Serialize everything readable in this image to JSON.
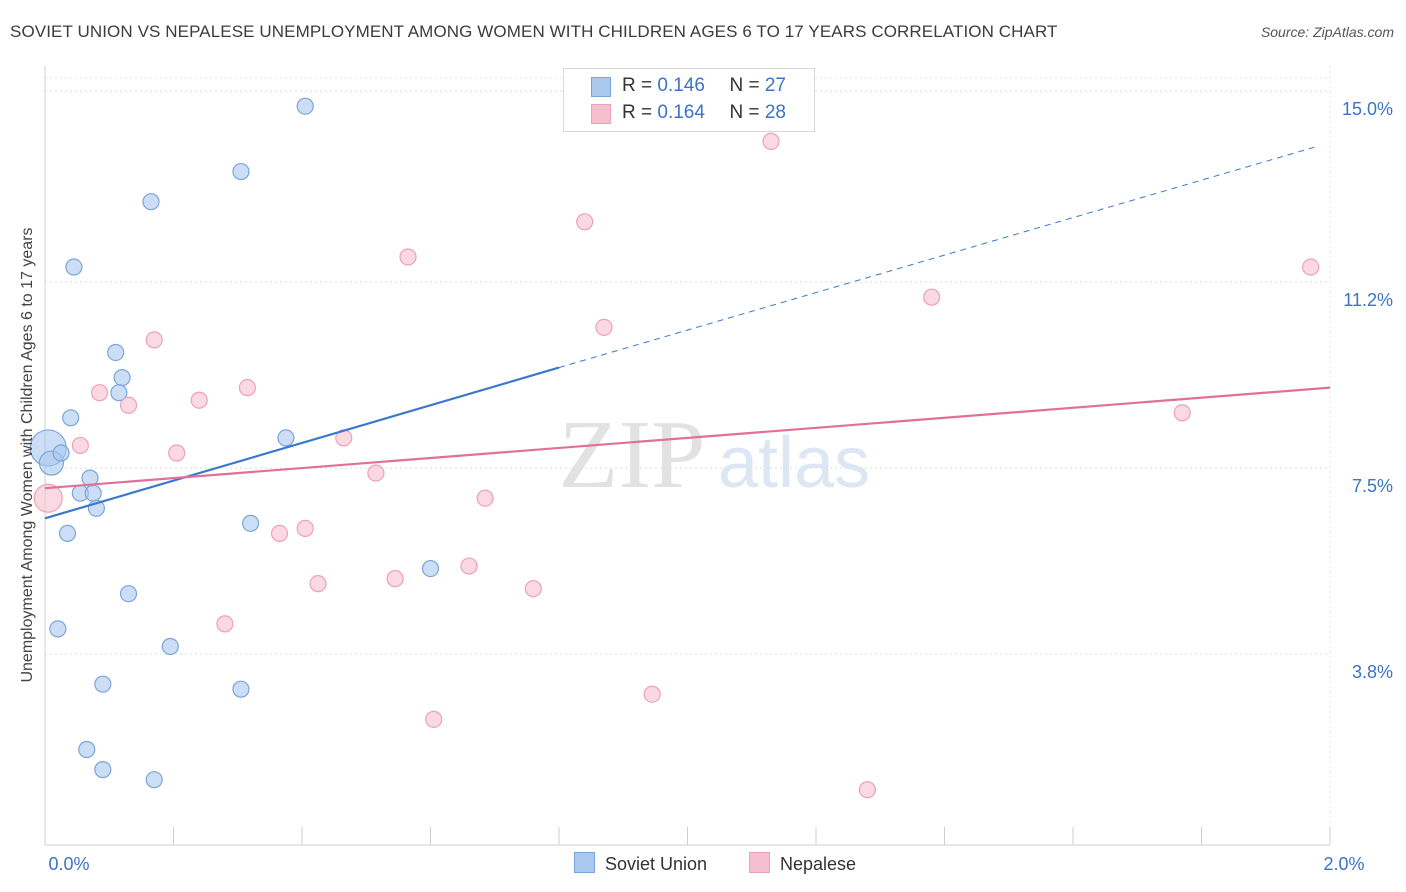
{
  "header": {
    "title": "SOVIET UNION VS NEPALESE UNEMPLOYMENT AMONG WOMEN WITH CHILDREN AGES 6 TO 17 YEARS CORRELATION CHART",
    "source": "Source: ZipAtlas.com"
  },
  "legend": {
    "soviet": {
      "r_label": "R = ",
      "r_value": "0.146",
      "n_label": "N = ",
      "n_value": "27"
    },
    "nepalese": {
      "r_label": "R = ",
      "r_value": "0.164",
      "n_label": "N = ",
      "n_value": "28"
    }
  },
  "bottom_legend": {
    "soviet": "Soviet Union",
    "nepalese": "Nepalese"
  },
  "watermark": {
    "zip": "ZIP",
    "atlas": "atlas"
  },
  "colors": {
    "soviet_fill": "#aac8ee",
    "soviet_stroke": "#7aa5dc",
    "soviet_line": "#3a78cf",
    "nepalese_fill": "#f6bfd0",
    "nepalese_stroke": "#eea0b8",
    "nepalese_line": "#e07098",
    "axis_label": "#3b73c7"
  },
  "chart_data": {
    "type": "scatter",
    "title": "SOVIET UNION VS NEPALESE UNEMPLOYMENT AMONG WOMEN WITH CHILDREN AGES 6 TO 17 YEARS CORRELATION CHART",
    "xlabel": "",
    "ylabel": "Unemployment Among Women with Children Ages 6 to 17 years",
    "xlim": [
      0.0,
      2.0
    ],
    "ylim": [
      0.0,
      15.5
    ],
    "x_tick_labels": [
      {
        "value": 0.0,
        "label": "0.0%"
      },
      {
        "value": 2.0,
        "label": "2.0%"
      }
    ],
    "y_tick_labels": [
      {
        "value": 3.8,
        "label": "3.8%"
      },
      {
        "value": 7.5,
        "label": "7.5%"
      },
      {
        "value": 11.2,
        "label": "11.2%"
      },
      {
        "value": 15.0,
        "label": "15.0%"
      }
    ],
    "series": [
      {
        "name": "Soviet Union",
        "R": 0.146,
        "N": 27,
        "points": [
          {
            "x": 0.005,
            "y": 7.9,
            "r": 18
          },
          {
            "x": 0.01,
            "y": 7.6,
            "r": 12
          },
          {
            "x": 0.025,
            "y": 7.8
          },
          {
            "x": 0.04,
            "y": 8.5
          },
          {
            "x": 0.055,
            "y": 7.0
          },
          {
            "x": 0.07,
            "y": 7.3
          },
          {
            "x": 0.075,
            "y": 7.0
          },
          {
            "x": 0.08,
            "y": 6.7
          },
          {
            "x": 0.035,
            "y": 6.2
          },
          {
            "x": 0.02,
            "y": 4.3
          },
          {
            "x": 0.045,
            "y": 11.5
          },
          {
            "x": 0.11,
            "y": 9.8
          },
          {
            "x": 0.12,
            "y": 9.3
          },
          {
            "x": 0.115,
            "y": 9.0
          },
          {
            "x": 0.165,
            "y": 12.8
          },
          {
            "x": 0.305,
            "y": 13.4
          },
          {
            "x": 0.405,
            "y": 14.7
          },
          {
            "x": 0.375,
            "y": 8.1
          },
          {
            "x": 0.32,
            "y": 6.4
          },
          {
            "x": 0.13,
            "y": 5.0
          },
          {
            "x": 0.195,
            "y": 3.95
          },
          {
            "x": 0.09,
            "y": 3.2
          },
          {
            "x": 0.305,
            "y": 3.1
          },
          {
            "x": 0.065,
            "y": 1.9
          },
          {
            "x": 0.09,
            "y": 1.5
          },
          {
            "x": 0.17,
            "y": 1.3
          },
          {
            "x": 0.6,
            "y": 5.5
          }
        ],
        "trend": {
          "x": [
            0.0,
            0.8
          ],
          "y": [
            6.5,
            9.5
          ]
        },
        "trend_extension": {
          "x": [
            0.8,
            1.98
          ],
          "y": [
            9.5,
            13.9
          ]
        }
      },
      {
        "name": "Nepalese",
        "R": 0.164,
        "N": 28,
        "points": [
          {
            "x": 0.005,
            "y": 6.9,
            "r": 14
          },
          {
            "x": 0.055,
            "y": 7.95
          },
          {
            "x": 0.085,
            "y": 9.0
          },
          {
            "x": 0.13,
            "y": 8.75
          },
          {
            "x": 0.17,
            "y": 10.05
          },
          {
            "x": 0.24,
            "y": 8.85
          },
          {
            "x": 0.205,
            "y": 7.8
          },
          {
            "x": 0.315,
            "y": 9.1
          },
          {
            "x": 0.28,
            "y": 4.4
          },
          {
            "x": 0.365,
            "y": 6.2
          },
          {
            "x": 0.405,
            "y": 6.3
          },
          {
            "x": 0.425,
            "y": 5.2
          },
          {
            "x": 0.465,
            "y": 8.1
          },
          {
            "x": 0.515,
            "y": 7.4
          },
          {
            "x": 0.545,
            "y": 5.3
          },
          {
            "x": 0.565,
            "y": 11.7
          },
          {
            "x": 0.605,
            "y": 2.5
          },
          {
            "x": 0.66,
            "y": 5.55
          },
          {
            "x": 0.685,
            "y": 6.9
          },
          {
            "x": 0.76,
            "y": 5.1
          },
          {
            "x": 0.84,
            "y": 12.4
          },
          {
            "x": 0.87,
            "y": 10.3
          },
          {
            "x": 0.945,
            "y": 3.0
          },
          {
            "x": 1.13,
            "y": 14.0
          },
          {
            "x": 1.28,
            "y": 1.1
          },
          {
            "x": 1.38,
            "y": 10.9
          },
          {
            "x": 1.77,
            "y": 8.6
          },
          {
            "x": 1.97,
            "y": 11.5
          }
        ],
        "trend": {
          "x": [
            0.0,
            2.0
          ],
          "y": [
            7.1,
            9.1
          ]
        }
      }
    ]
  }
}
